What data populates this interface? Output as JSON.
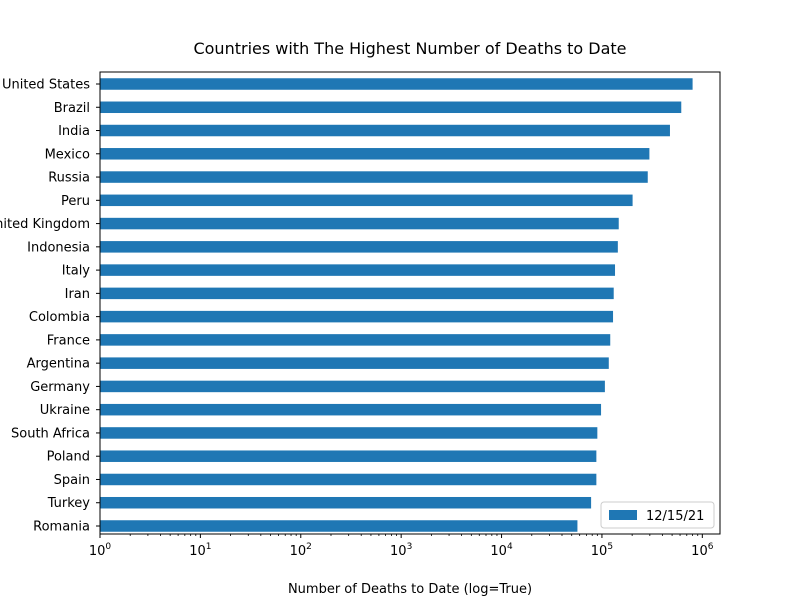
{
  "chart_data": {
    "type": "bar",
    "orientation": "horizontal",
    "title": "Countries with The Highest Number of Deaths to Date",
    "xlabel": "Number of Deaths to Date (log=True)",
    "ylabel": "",
    "xscale": "log",
    "xlim": [
      1,
      1500000
    ],
    "x_ticks": [
      {
        "value": 1,
        "base": "10",
        "exp": "0"
      },
      {
        "value": 10,
        "base": "10",
        "exp": "1"
      },
      {
        "value": 100,
        "base": "10",
        "exp": "2"
      },
      {
        "value": 1000,
        "base": "10",
        "exp": "3"
      },
      {
        "value": 10000,
        "base": "10",
        "exp": "4"
      },
      {
        "value": 100000,
        "base": "10",
        "exp": "5"
      },
      {
        "value": 1000000,
        "base": "10",
        "exp": "6"
      }
    ],
    "grid": false,
    "legend_position": "lower-right",
    "categories": [
      "United States",
      "Brazil",
      "India",
      "Mexico",
      "Russia",
      "Peru",
      "United Kingdom",
      "Indonesia",
      "Italy",
      "Iran",
      "Colombia",
      "France",
      "Argentina",
      "Germany",
      "Ukraine",
      "South Africa",
      "Poland",
      "Spain",
      "Turkey",
      "Romania"
    ],
    "series": [
      {
        "name": "12/15/21",
        "color": "#1f77b4",
        "values": [
          800000,
          617000,
          476000,
          297000,
          286000,
          202000,
          147000,
          144000,
          135000,
          131000,
          129000,
          121000,
          117000,
          107000,
          98000,
          90000,
          88000,
          88000,
          78000,
          57000
        ]
      }
    ]
  }
}
